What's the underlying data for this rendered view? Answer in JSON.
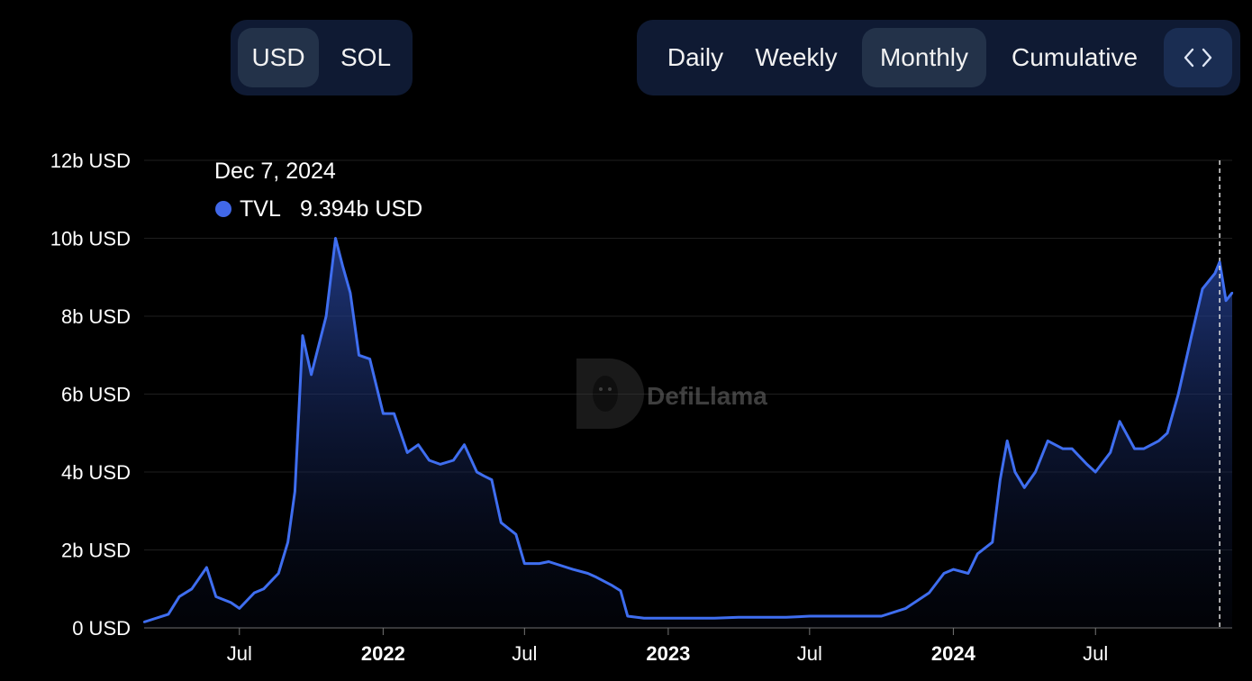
{
  "currency_toggle": {
    "options": [
      "USD",
      "SOL"
    ],
    "selected": "USD"
  },
  "period_toggle": {
    "options": [
      "Daily",
      "Weekly",
      "Monthly",
      "Cumulative"
    ],
    "selected": "Monthly"
  },
  "embed_icon": "code-brackets-icon",
  "watermark": {
    "text": "DefiLlama",
    "icon": "llama-logo"
  },
  "tooltip": {
    "date": "Dec 7, 2024",
    "series": "TVL",
    "value": "9.394b USD",
    "color": "#4168e8"
  },
  "colors": {
    "line": "#3f6ef0",
    "background": "#000000",
    "controls": "#0f1a33",
    "active": "#233249"
  },
  "chart_data": {
    "type": "area",
    "series": [
      {
        "name": "TVL",
        "x": [
          "2021-03-01",
          "2021-04-01",
          "2021-04-15",
          "2021-05-01",
          "2021-05-20",
          "2021-06-01",
          "2021-06-20",
          "2021-07-01",
          "2021-07-20",
          "2021-08-01",
          "2021-08-20",
          "2021-09-01",
          "2021-09-10",
          "2021-09-20",
          "2021-10-01",
          "2021-10-20",
          "2021-11-01",
          "2021-11-10",
          "2021-11-20",
          "2021-12-01",
          "2021-12-15",
          "2022-01-01",
          "2022-01-15",
          "2022-02-01",
          "2022-02-15",
          "2022-03-01",
          "2022-03-15",
          "2022-04-01",
          "2022-04-15",
          "2022-05-01",
          "2022-05-10",
          "2022-05-20",
          "2022-06-01",
          "2022-06-20",
          "2022-07-01",
          "2022-07-20",
          "2022-08-01",
          "2022-09-01",
          "2022-09-20",
          "2022-10-01",
          "2022-10-20",
          "2022-11-01",
          "2022-11-10",
          "2022-12-01",
          "2023-01-01",
          "2023-02-01",
          "2023-03-01",
          "2023-04-01",
          "2023-05-01",
          "2023-06-01",
          "2023-07-01",
          "2023-08-01",
          "2023-09-01",
          "2023-10-01",
          "2023-11-01",
          "2023-12-01",
          "2023-12-20",
          "2024-01-01",
          "2024-01-20",
          "2024-02-01",
          "2024-02-20",
          "2024-03-01",
          "2024-03-10",
          "2024-03-20",
          "2024-04-01",
          "2024-04-15",
          "2024-05-01",
          "2024-05-20",
          "2024-06-01",
          "2024-06-20",
          "2024-07-01",
          "2024-07-20",
          "2024-08-01",
          "2024-08-20",
          "2024-09-01",
          "2024-09-20",
          "2024-10-01",
          "2024-10-15",
          "2024-11-01",
          "2024-11-15",
          "2024-12-01",
          "2024-12-07",
          "2024-12-15",
          "2024-12-23"
        ],
        "y": [
          0.15,
          0.35,
          0.8,
          1.0,
          1.55,
          0.8,
          0.65,
          0.5,
          0.9,
          1.0,
          1.4,
          2.2,
          3.5,
          7.5,
          6.5,
          8.0,
          10.0,
          9.3,
          8.6,
          7.0,
          6.9,
          5.5,
          5.5,
          4.5,
          4.7,
          4.3,
          4.2,
          4.3,
          4.7,
          4.0,
          3.9,
          3.8,
          2.7,
          2.4,
          1.65,
          1.65,
          1.7,
          1.5,
          1.4,
          1.3,
          1.1,
          0.95,
          0.3,
          0.25,
          0.25,
          0.25,
          0.25,
          0.27,
          0.27,
          0.27,
          0.3,
          0.3,
          0.3,
          0.3,
          0.5,
          0.9,
          1.4,
          1.5,
          1.4,
          1.9,
          2.2,
          3.8,
          4.8,
          4.0,
          3.6,
          4.0,
          4.8,
          4.6,
          4.6,
          4.2,
          4.0,
          4.5,
          5.3,
          4.6,
          4.6,
          4.8,
          5.0,
          6.0,
          7.5,
          8.7,
          9.1,
          9.394,
          8.4,
          8.6
        ]
      }
    ],
    "x_ticks": [
      {
        "label": "Jul",
        "date": "2021-07-01",
        "bold": false
      },
      {
        "label": "2022",
        "date": "2022-01-01",
        "bold": true
      },
      {
        "label": "Jul",
        "date": "2022-07-01",
        "bold": false
      },
      {
        "label": "2023",
        "date": "2023-01-01",
        "bold": true
      },
      {
        "label": "Jul",
        "date": "2023-07-01",
        "bold": false
      },
      {
        "label": "2024",
        "date": "2024-01-01",
        "bold": true
      },
      {
        "label": "Jul",
        "date": "2024-07-01",
        "bold": false
      }
    ],
    "y_ticks": [
      {
        "label": "0 USD",
        "value": 0
      },
      {
        "label": "2b USD",
        "value": 2
      },
      {
        "label": "4b USD",
        "value": 4
      },
      {
        "label": "6b USD",
        "value": 6
      },
      {
        "label": "8b USD",
        "value": 8
      },
      {
        "label": "10b USD",
        "value": 10
      },
      {
        "label": "12b USD",
        "value": 12
      }
    ],
    "ylim": [
      0,
      12
    ],
    "xlim": [
      "2021-03-01",
      "2024-12-23"
    ],
    "grid": true,
    "crosshair_date": "2024-12-07"
  }
}
